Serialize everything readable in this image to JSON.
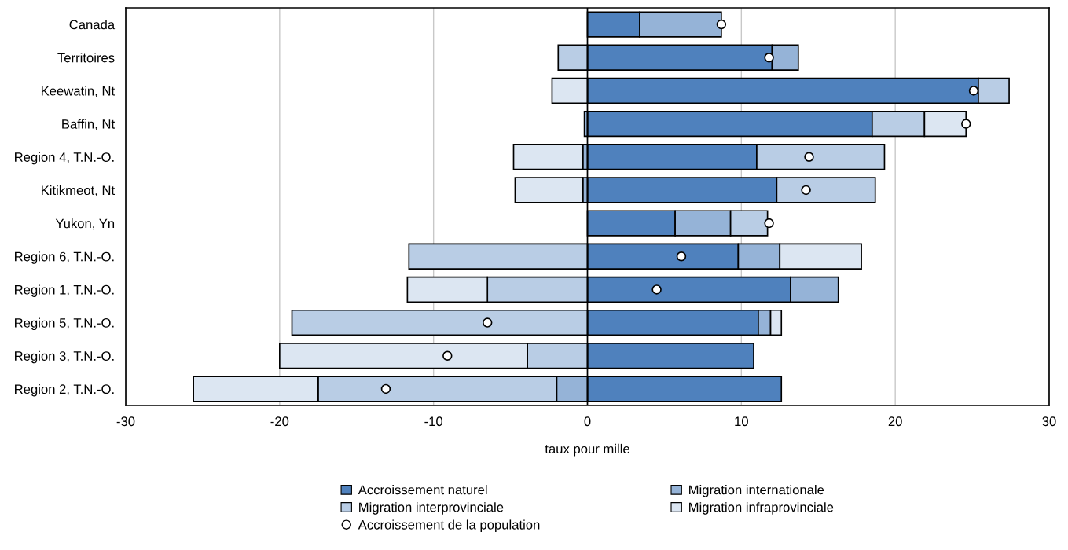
{
  "chart_data": {
    "type": "bar",
    "orientation": "horizontal",
    "stacked": true,
    "xlabel": "taux pour mille",
    "categories": [
      "Canada",
      "Territoires",
      "Keewatin, Nt",
      "Baffin, Nt",
      "Region 4, T.N.-O.",
      "Kitikmeot, Nt",
      "Yukon, Yn",
      "Region 6, T.N.-O.",
      "Region 1, T.N.-O.",
      "Region 5, T.N.-O.",
      "Region 3, T.N.-O.",
      "Region 2, T.N.-O."
    ],
    "series": [
      {
        "name": "Accroissement naturel",
        "color": "#4f81bd",
        "values": [
          3.4,
          12.0,
          25.4,
          18.5,
          11.0,
          12.3,
          5.7,
          9.8,
          13.2,
          11.1,
          10.8,
          12.6
        ]
      },
      {
        "name": "Migration internationale",
        "color": "#95b3d7",
        "values": [
          5.3,
          1.7,
          null,
          -0.2,
          -0.3,
          -0.3,
          3.6,
          2.7,
          3.1,
          0.8,
          null,
          -2.0
        ]
      },
      {
        "name": "Migration interprovinciale",
        "color": "#b9cde5",
        "values": [
          null,
          -1.9,
          2.0,
          3.4,
          8.3,
          6.4,
          2.4,
          -11.6,
          -6.5,
          -19.2,
          -3.9,
          -15.5
        ]
      },
      {
        "name": "Migration infraprovinciale",
        "color": "#dce6f2",
        "values": [
          null,
          null,
          -2.3,
          2.7,
          -4.5,
          -4.4,
          null,
          5.3,
          -5.2,
          0.7,
          -16.1,
          -8.1
        ]
      },
      {
        "name": "Accroissement de la population",
        "type": "scatter",
        "marker": "circle",
        "color": "#ffffff",
        "values": [
          8.7,
          11.8,
          25.1,
          24.6,
          14.4,
          14.2,
          11.8,
          6.1,
          4.5,
          -6.5,
          -9.1,
          -13.1
        ]
      }
    ],
    "xlim": [
      -30,
      30
    ],
    "xticks": [
      -30,
      -20,
      -10,
      0,
      10,
      20,
      30
    ],
    "grid": "x",
    "legend": "bottom"
  }
}
